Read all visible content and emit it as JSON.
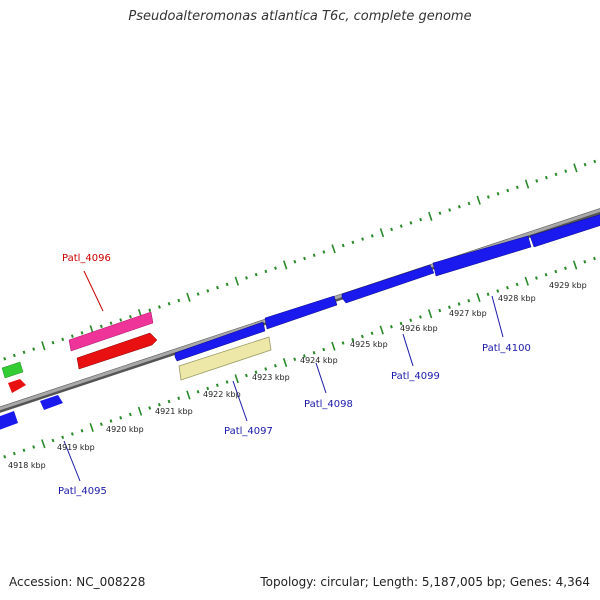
{
  "title": "Pseudoalteromonas atlantica T6c, complete genome",
  "footer": {
    "accession": "Accession: NC_008228",
    "summary": "Topology: circular; Length: 5,187,005 bp; Genes: 4,364"
  },
  "colors": {
    "backbone": "#8a8a8a",
    "forward_gene": "#1a1aee",
    "reverse_gene": "#e81010",
    "pink_feature": "#ee3399",
    "yellow_feature": "#eee8a8",
    "green_feature": "#33cc33",
    "ticks": "#2a8a2a",
    "label_blue": "#1a1aaa",
    "label_red": "#cc0000"
  },
  "scale": {
    "unit": "kbp",
    "labels": [
      "4918 kbp",
      "4919 kbp",
      "4920 kbp",
      "4921 kbp",
      "4922 kbp",
      "4923 kbp",
      "4924 kbp",
      "4925 kbp",
      "4926 kbp",
      "4927 kbp",
      "4928 kbp",
      "4929 kbp"
    ]
  },
  "genes": [
    {
      "label": "Patl_4095",
      "color": "blue"
    },
    {
      "label": "Patl_4096",
      "color": "red"
    },
    {
      "label": "Patl_4097",
      "color": "blue"
    },
    {
      "label": "Patl_4098",
      "color": "blue"
    },
    {
      "label": "Patl_4099",
      "color": "blue"
    },
    {
      "label": "Patl_4100",
      "color": "blue"
    }
  ]
}
